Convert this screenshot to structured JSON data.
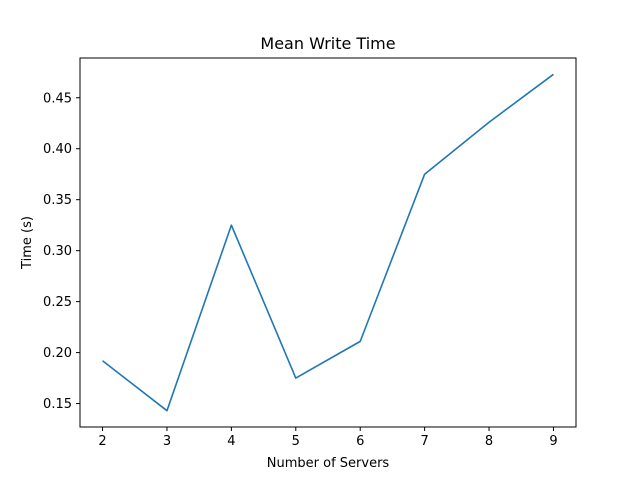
{
  "chart_data": {
    "type": "line",
    "title": "Mean Write Time",
    "xlabel": "Number of Servers",
    "ylabel": "Time (s)",
    "x": [
      2,
      3,
      4,
      5,
      6,
      7,
      8,
      9
    ],
    "series": [
      {
        "values": [
          0.192,
          0.143,
          0.325,
          0.175,
          0.211,
          0.375,
          0.426,
          0.473
        ],
        "color": "#1f77b4"
      }
    ],
    "xlim": [
      1.65,
      9.35
    ],
    "ylim": [
      0.127,
      0.489
    ],
    "xticks": [
      2,
      3,
      4,
      5,
      6,
      7,
      8,
      9
    ],
    "yticks": [
      0.15,
      0.2,
      0.25,
      0.3,
      0.35,
      0.4,
      0.45
    ],
    "ytick_labels": [
      "0.15",
      "0.20",
      "0.25",
      "0.30",
      "0.35",
      "0.40",
      "0.45"
    ],
    "grid": false
  }
}
